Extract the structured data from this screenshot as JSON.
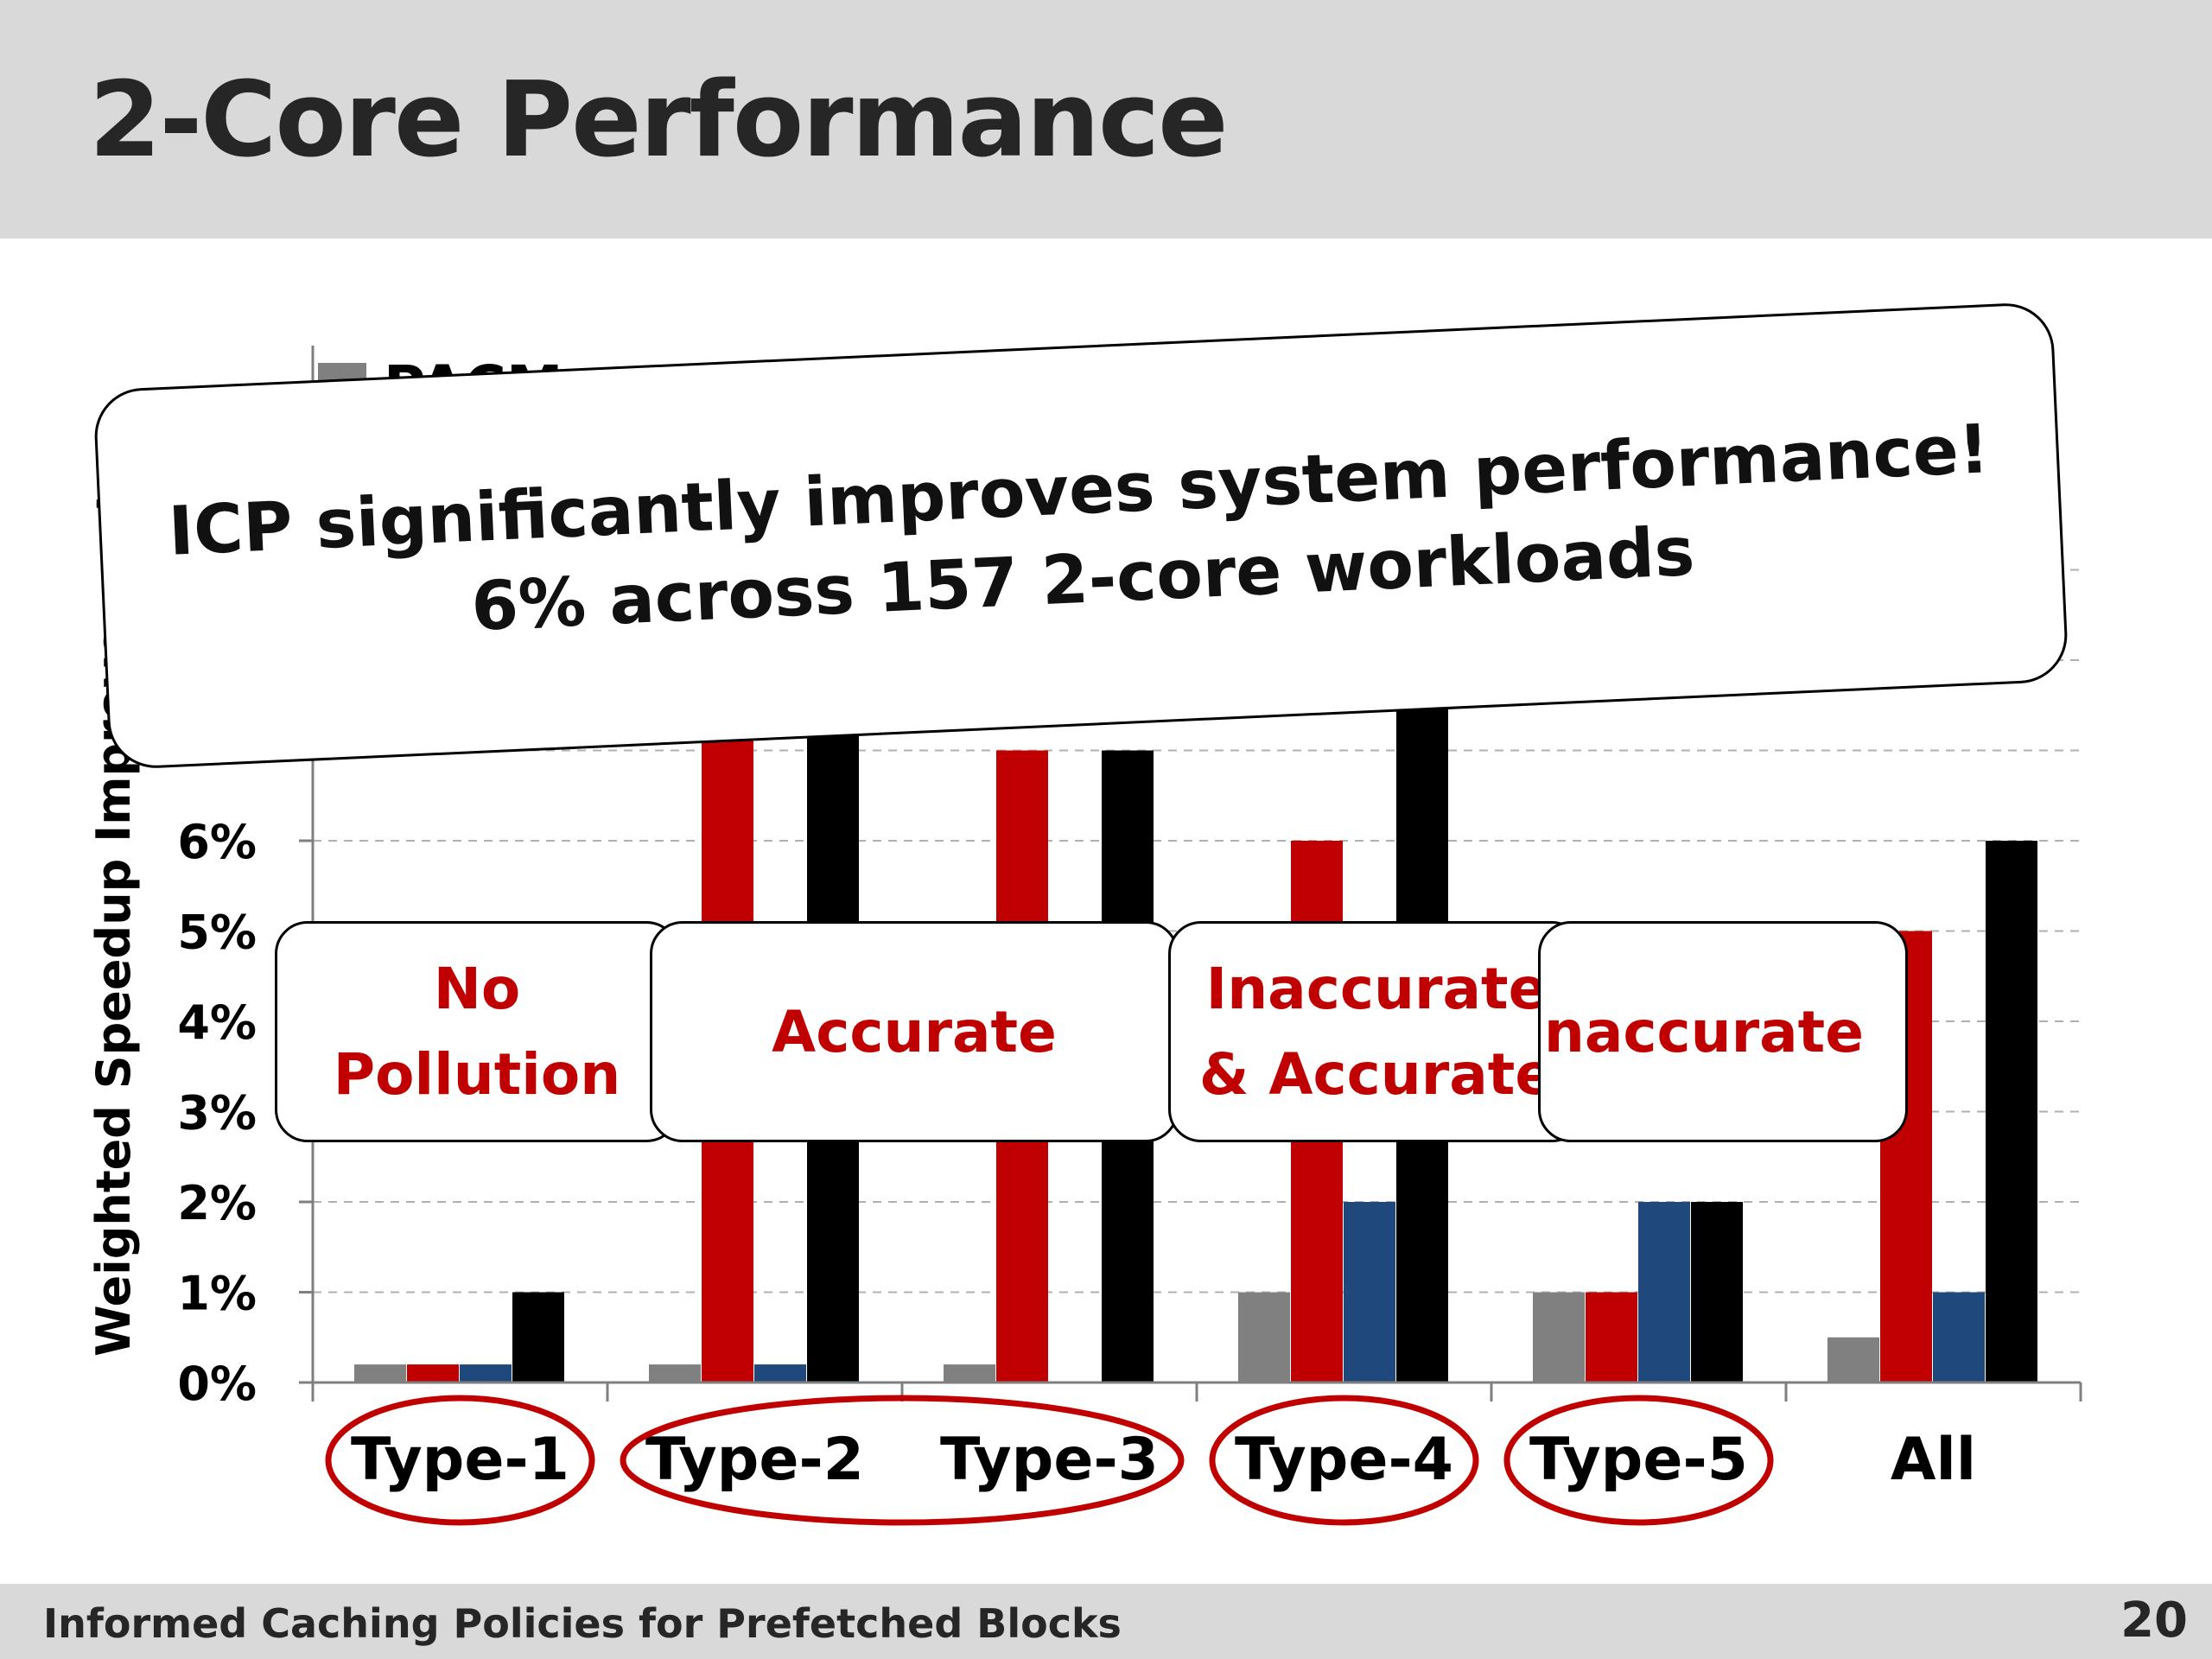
{
  "slide": {
    "title": "2-Core Performance",
    "footer": "Informed Caching Policies for Prefetched Blocks",
    "page_number": "20"
  },
  "banner": {
    "line1": "ICP significantly improves system performance!",
    "line2": "6% across 157 2-core workloads"
  },
  "callouts": [
    {
      "line1": "No",
      "line2": "Pollution"
    },
    {
      "line1": "Accurate",
      "line2": ""
    },
    {
      "line1": "Inaccurate",
      "line2": "& Accurate"
    },
    {
      "line1": "Inaccurate",
      "line2": ""
    }
  ],
  "chart_data": {
    "type": "bar",
    "title": "",
    "xlabel": "",
    "ylabel": "Weighted Speedup Improvement",
    "ylim": [
      0,
      9
    ],
    "yticks_visible": [
      "0%",
      "1%",
      "2%",
      "3%",
      "4%",
      "5%",
      "6%"
    ],
    "grid": true,
    "categories": [
      "Type-1",
      "Type-2",
      "Type-3",
      "Type-4",
      "Type-5",
      "All"
    ],
    "highlighted_groups": [
      [
        "Type-1"
      ],
      [
        "Type-2",
        "Type-3"
      ],
      [
        "Type-4"
      ],
      [
        "Type-5"
      ]
    ],
    "series": [
      {
        "name": "PACMan",
        "color": "#808080",
        "values": [
          0.2,
          0.2,
          0.2,
          1,
          1,
          0.5
        ]
      },
      {
        "name": "",
        "color": "#c00000",
        "values": [
          0.2,
          8,
          7,
          6,
          1,
          5
        ]
      },
      {
        "name": "",
        "color": "#1f497d",
        "values": [
          0.2,
          0.2,
          0,
          2,
          2,
          1
        ]
      },
      {
        "name": "",
        "color": "#000000",
        "values": [
          1,
          8,
          7,
          8,
          2,
          6
        ]
      }
    ],
    "legend_visible_text": "PACM",
    "legend_position": "top-left"
  }
}
